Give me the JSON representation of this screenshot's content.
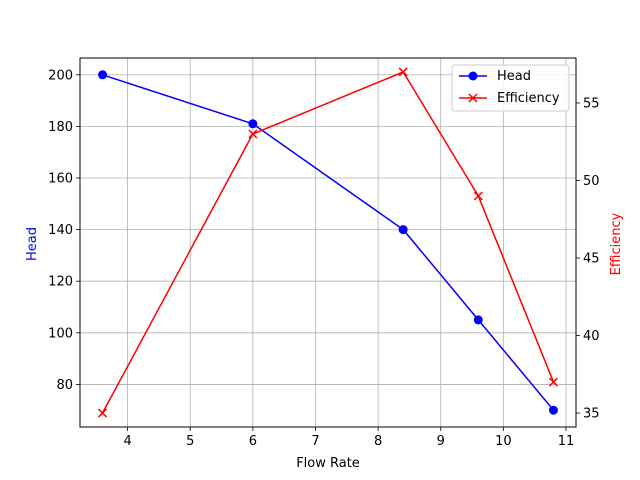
{
  "chart_data": {
    "type": "line",
    "xlabel": "Flow Rate",
    "ylabel_left": "Head",
    "ylabel_right": "Efficiency",
    "x": [
      3.6,
      6.0,
      8.4,
      9.6,
      10.8
    ],
    "series": [
      {
        "name": "Head",
        "axis": "left",
        "color": "#0000ff",
        "marker": "circle",
        "values": [
          200,
          181,
          140,
          105,
          70
        ]
      },
      {
        "name": "Efficiency",
        "axis": "right",
        "color": "#ff0000",
        "marker": "x",
        "values": [
          35,
          53,
          57,
          49,
          37
        ]
      }
    ],
    "xlim": [
      3.24,
      11.16
    ],
    "ylim_left": [
      63.5,
      206.5
    ],
    "ylim_right": [
      34.1,
      57.9
    ],
    "xticks": [
      "4",
      "5",
      "6",
      "7",
      "8",
      "9",
      "10",
      "11"
    ],
    "yticks_left": [
      "80",
      "100",
      "120",
      "140",
      "160",
      "180",
      "200"
    ],
    "yticks_right": [
      "35",
      "40",
      "45",
      "50",
      "55"
    ],
    "grid": true,
    "legend_position": "top-right"
  }
}
